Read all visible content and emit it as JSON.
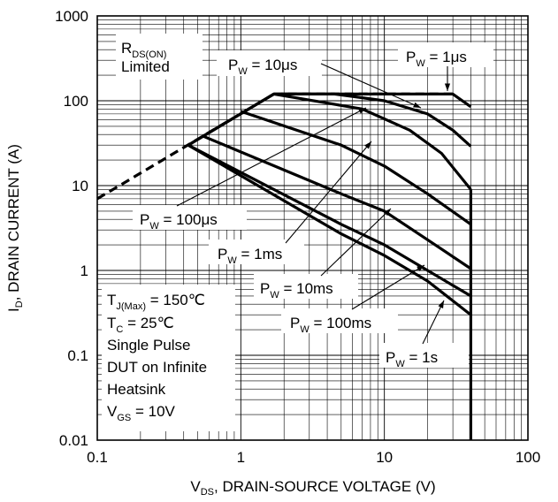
{
  "chart_data": {
    "type": "line",
    "x_scale": "log",
    "y_scale": "log",
    "xlim": [
      0.1,
      100
    ],
    "ylim": [
      0.01,
      1000
    ],
    "grid": true,
    "x_ticks": [
      "0.1",
      "1",
      "10",
      "100"
    ],
    "y_ticks": [
      "0.01",
      "0.1",
      "1",
      "10",
      "100",
      "1000"
    ],
    "xlabel": {
      "main": "V",
      "sub": "DS",
      "rest": ", DRAIN-SOURCE VOLTAGE (V)"
    },
    "ylabel": {
      "main": "I",
      "sub": "D",
      "rest": ", DRAIN CURRENT (A)"
    },
    "series": [
      {
        "name": "P_W = 1μs",
        "points": [
          [
            0.43,
            30
          ],
          [
            1.7,
            120
          ],
          [
            30,
            120
          ],
          [
            40,
            85
          ]
        ]
      },
      {
        "name": "P_W = 10μs",
        "points": [
          [
            1.9,
            120
          ],
          [
            4.5,
            120
          ],
          [
            10,
            100
          ],
          [
            20,
            70
          ],
          [
            30,
            45
          ],
          [
            40,
            29
          ]
        ]
      },
      {
        "name": "P_W = 100μs",
        "points": [
          [
            0.43,
            30
          ],
          [
            1.7,
            120
          ],
          [
            7,
            80
          ],
          [
            15,
            45
          ],
          [
            25,
            24
          ],
          [
            40,
            9
          ]
        ]
      },
      {
        "name": "P_W = 1ms",
        "points": [
          [
            1,
            75
          ],
          [
            5,
            30
          ],
          [
            10,
            17
          ],
          [
            20,
            8
          ],
          [
            40,
            3.5
          ]
        ]
      },
      {
        "name": "P_W = 10ms",
        "points": [
          [
            0.55,
            38
          ],
          [
            5,
            8
          ],
          [
            10,
            5
          ],
          [
            20,
            2.3
          ],
          [
            40,
            1.05
          ]
        ]
      },
      {
        "name": "P_W = 100ms",
        "points": [
          [
            0.43,
            30
          ],
          [
            5,
            3.5
          ],
          [
            10,
            2
          ],
          [
            20,
            1
          ],
          [
            40,
            0.5
          ]
        ]
      },
      {
        "name": "P_W = 1s",
        "points": [
          [
            0.43,
            30
          ],
          [
            5,
            2.7
          ],
          [
            10,
            1.5
          ],
          [
            20,
            0.75
          ],
          [
            40,
            0.3
          ]
        ]
      }
    ],
    "rds_on_limit": {
      "points": [
        [
          0.1,
          7
        ],
        [
          1.7,
          120
        ]
      ]
    },
    "boundary": {
      "x": 40,
      "y_from": 0.01,
      "y_to": 9
    }
  },
  "annotations": {
    "rds": {
      "l1_main": "R",
      "l1_sub": "DS(ON)",
      "l2": "Limited"
    },
    "pw_1us": {
      "main": "P",
      "sub": "W",
      "rest": " = 1μs"
    },
    "pw_10us": {
      "main": "P",
      "sub": "W",
      "rest": " = 10μs"
    },
    "pw_100us": {
      "main": "P",
      "sub": "W",
      "rest": " = 100μs"
    },
    "pw_1ms": {
      "main": "P",
      "sub": "W",
      "rest": " = 1ms"
    },
    "pw_10ms": {
      "main": "P",
      "sub": "W",
      "rest": " = 10ms"
    },
    "pw_100ms": {
      "main": "P",
      "sub": "W",
      "rest": " = 100ms"
    },
    "pw_1s": {
      "main": "P",
      "sub": "W",
      "rest": " = 1s"
    },
    "conditions": {
      "tj_main": "T",
      "tj_sub": "J(Max)",
      "tj_rest": " = 150℃",
      "tc_main": "T",
      "tc_sub": "C",
      "tc_rest": " = 25℃",
      "line3": "Single Pulse",
      "line4": "DUT on Infinite",
      "line5": "Heatsink",
      "vgs_main": "V",
      "vgs_sub": "GS",
      "vgs_rest": " = 10V"
    }
  },
  "colors": {
    "line": "#000000",
    "grid": "#000000",
    "background": "#ffffff"
  }
}
